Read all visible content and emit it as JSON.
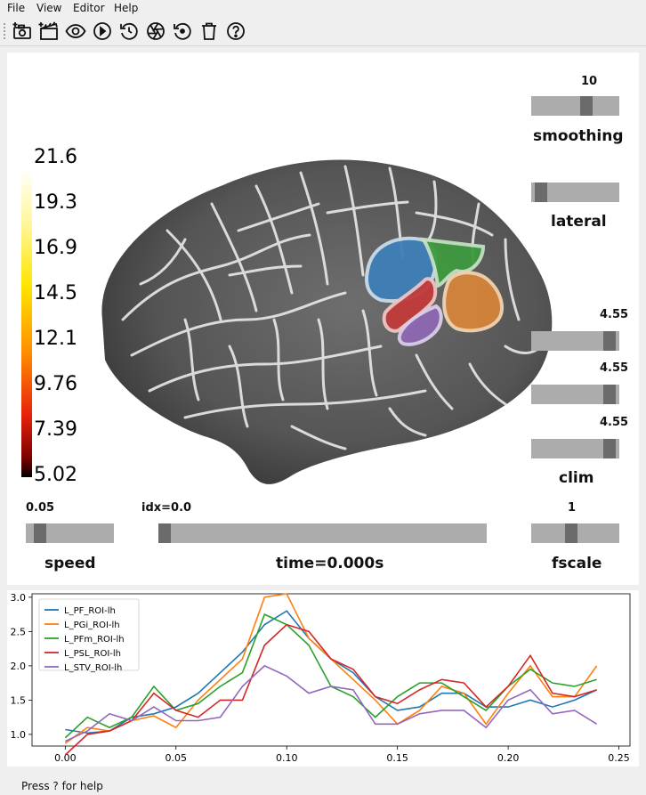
{
  "menubar": {
    "items": [
      {
        "label": "File"
      },
      {
        "label": "View"
      },
      {
        "label": "Editor"
      },
      {
        "label": "Help"
      }
    ]
  },
  "toolbar": {
    "buttons": [
      {
        "icon": "screenshot-icon"
      },
      {
        "icon": "movie-icon"
      },
      {
        "icon": "eye-icon"
      },
      {
        "icon": "play-icon"
      },
      {
        "icon": "reset-time-icon"
      },
      {
        "icon": "camera-aperture-icon"
      },
      {
        "icon": "restore-icon"
      },
      {
        "icon": "trash-icon"
      },
      {
        "icon": "help-icon"
      }
    ]
  },
  "colorbar": {
    "ticks": [
      "21.6",
      "19.3",
      "16.9",
      "14.5",
      "12.1",
      "9.76",
      "7.39",
      "5.02"
    ]
  },
  "controls": {
    "smoothing": {
      "label": "smoothing",
      "value": "10",
      "level": 0.65
    },
    "lateral": {
      "label": "lateral",
      "level": 0.05
    },
    "clim": {
      "label": "clim",
      "values": [
        "4.55",
        "4.55",
        "4.55"
      ],
      "levels": [
        0.95,
        0.95,
        0.95
      ]
    },
    "fscale": {
      "label": "fscale",
      "value": "1",
      "level": 0.45
    },
    "speed": {
      "label": "speed",
      "value": "0.05",
      "level": 0.1
    },
    "time": {
      "label": "time=0.000s",
      "value": "idx=0.0",
      "level": 0.0
    }
  },
  "status": {
    "text": "Press ? for help"
  },
  "chart_data": {
    "type": "line",
    "x": [
      0.0,
      0.01,
      0.02,
      0.03,
      0.04,
      0.05,
      0.06,
      0.07,
      0.08,
      0.09,
      0.1,
      0.11,
      0.12,
      0.13,
      0.14,
      0.15,
      0.16,
      0.17,
      0.18,
      0.19,
      0.2,
      0.21,
      0.22,
      0.23,
      0.24
    ],
    "xlim": [
      -0.015,
      0.255
    ],
    "ylim": [
      0.83,
      3.05
    ],
    "xticks": [
      "0.00",
      "0.05",
      "0.10",
      "0.15",
      "0.20",
      "0.25"
    ],
    "yticks": [
      "1.0",
      "1.5",
      "2.0",
      "2.5",
      "3.0"
    ],
    "legend": "top-left",
    "series": [
      {
        "name": "L_PF_ROI-lh",
        "color": "#1f77b4",
        "values": [
          1.07,
          1.02,
          1.05,
          1.25,
          1.3,
          1.4,
          1.6,
          1.9,
          2.2,
          2.6,
          2.8,
          2.4,
          2.1,
          1.9,
          1.55,
          1.35,
          1.4,
          1.6,
          1.6,
          1.4,
          1.4,
          1.5,
          1.4,
          1.5,
          1.65
        ]
      },
      {
        "name": "L_PGi_ROI-lh",
        "color": "#ff7f0e",
        "values": [
          0.87,
          1.1,
          1.05,
          1.2,
          1.27,
          1.1,
          1.5,
          1.8,
          2.1,
          3.0,
          3.05,
          2.4,
          2.1,
          1.8,
          1.5,
          1.15,
          1.35,
          1.7,
          1.6,
          1.15,
          1.6,
          2.0,
          1.55,
          1.55,
          2.0
        ]
      },
      {
        "name": "L_PFm_ROI-lh",
        "color": "#2ca02c",
        "values": [
          0.95,
          1.25,
          1.1,
          1.25,
          1.7,
          1.35,
          1.45,
          1.7,
          1.9,
          2.75,
          2.6,
          2.3,
          1.7,
          1.55,
          1.25,
          1.55,
          1.75,
          1.75,
          1.55,
          1.35,
          1.7,
          1.95,
          1.75,
          1.7,
          1.8
        ]
      },
      {
        "name": "L_PSL_ROI-lh",
        "color": "#d62728",
        "values": [
          0.7,
          1.0,
          1.05,
          1.2,
          1.6,
          1.35,
          1.25,
          1.5,
          1.5,
          2.3,
          2.6,
          2.5,
          2.1,
          1.95,
          1.55,
          1.45,
          1.65,
          1.8,
          1.75,
          1.4,
          1.7,
          2.15,
          1.6,
          1.55,
          1.65
        ]
      },
      {
        "name": "L_STV_ROI-lh",
        "color": "#9467bd",
        "values": [
          0.9,
          1.05,
          1.3,
          1.2,
          1.4,
          1.2,
          1.2,
          1.25,
          1.7,
          2.0,
          1.85,
          1.6,
          1.7,
          1.65,
          1.15,
          1.15,
          1.3,
          1.35,
          1.35,
          1.1,
          1.5,
          1.65,
          1.3,
          1.35,
          1.15
        ]
      }
    ]
  }
}
